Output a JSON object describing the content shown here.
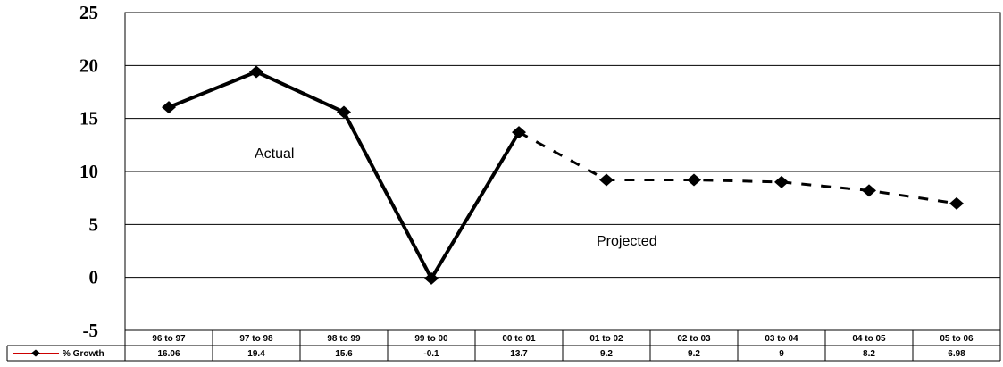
{
  "chart_data": {
    "type": "line",
    "categories": [
      "96 to 97",
      "97 to 98",
      "98 to 99",
      "99 to 00",
      "00 to 01",
      "01 to 02",
      "02 to 03",
      "03 to 04",
      "04 to 05",
      "05 to 06"
    ],
    "series": [
      {
        "name": "% Growth",
        "values": [
          16.06,
          19.4,
          15.6,
          -0.1,
          13.7,
          9.2,
          9.2,
          9,
          8.2,
          6.98
        ],
        "value_labels": [
          "16.06",
          "19.4",
          "15.6",
          "-0.1",
          "13.7",
          "9.2",
          "9.2",
          "9",
          "8.2",
          "6.98"
        ],
        "color": "#000000",
        "legend_line_color": "#cc0000",
        "marker": "diamond",
        "actual_count": 5
      }
    ],
    "ylim": [
      -5,
      25
    ],
    "yticks": [
      25,
      20,
      15,
      10,
      5,
      0,
      -5
    ],
    "grid": true,
    "legend": "data-table",
    "annotations": [
      {
        "text": "Actual"
      },
      {
        "text": "Projected"
      }
    ],
    "title": "",
    "xlabel": "",
    "ylabel": ""
  }
}
